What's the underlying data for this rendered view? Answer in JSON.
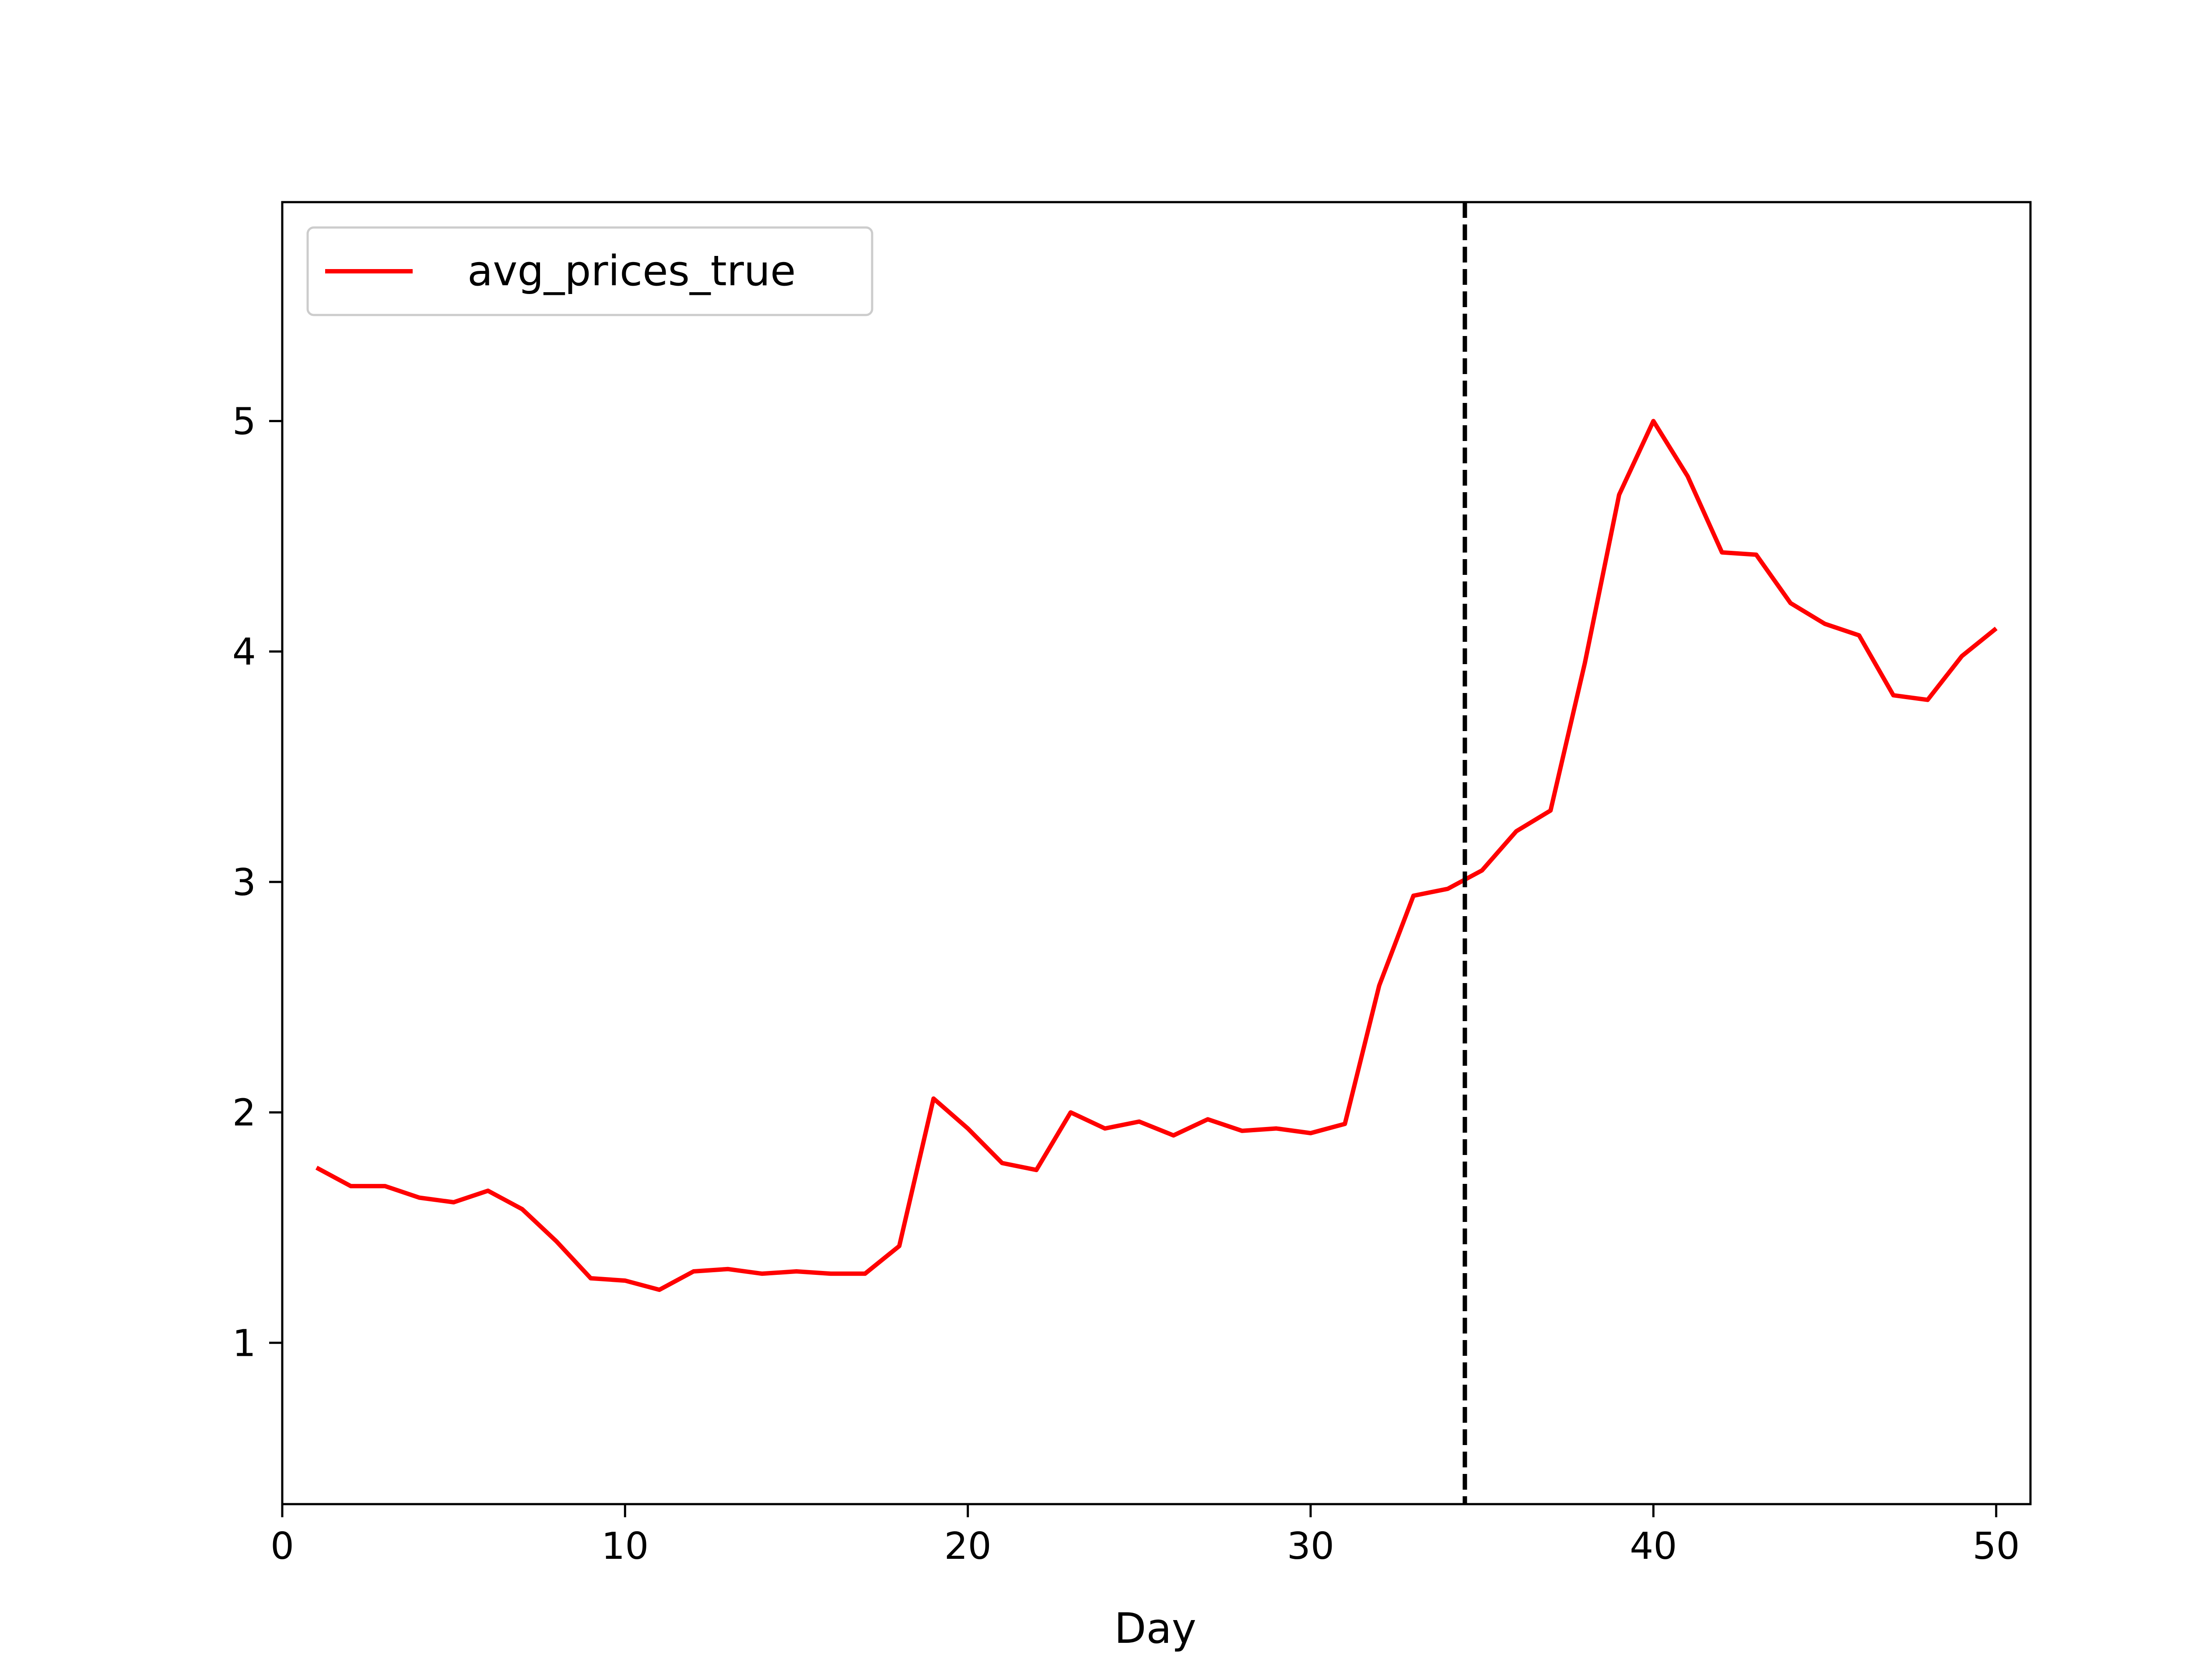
{
  "chart_data": {
    "type": "line",
    "title": "",
    "xlabel": "Day",
    "ylabel": "",
    "xlim": [
      0,
      51
    ],
    "ylim": [
      0.3,
      5.95
    ],
    "xticks": [
      0,
      10,
      20,
      30,
      40,
      50
    ],
    "yticks": [
      1,
      2,
      3,
      4,
      5
    ],
    "grid": false,
    "legend_position": "upper-left",
    "series": [
      {
        "name": "avg_prices_true",
        "color": "#ff0000",
        "x": [
          1,
          2,
          3,
          4,
          5,
          6,
          7,
          8,
          9,
          10,
          11,
          12,
          13,
          14,
          15,
          16,
          17,
          18,
          19,
          20,
          21,
          22,
          23,
          24,
          25,
          26,
          27,
          28,
          29,
          30,
          31,
          32,
          33,
          34,
          35,
          36,
          37,
          38,
          39,
          40,
          41,
          42,
          43,
          44,
          45,
          46,
          47,
          48,
          49,
          50
        ],
        "y": [
          1.76,
          1.68,
          1.68,
          1.63,
          1.61,
          1.66,
          1.58,
          1.44,
          1.28,
          1.27,
          1.23,
          1.31,
          1.32,
          1.3,
          1.31,
          1.3,
          1.3,
          1.42,
          2.06,
          1.93,
          1.78,
          1.75,
          2.0,
          1.93,
          1.96,
          1.9,
          1.97,
          1.92,
          1.93,
          1.91,
          1.95,
          2.55,
          2.94,
          2.97,
          3.05,
          3.22,
          3.31,
          3.95,
          4.68,
          5.0,
          4.76,
          4.43,
          4.42,
          4.21,
          4.12,
          4.07,
          3.81,
          3.79,
          3.98,
          4.1
        ]
      }
    ],
    "vline": {
      "x": 34.5,
      "color": "#000000",
      "style": "dashed"
    }
  }
}
